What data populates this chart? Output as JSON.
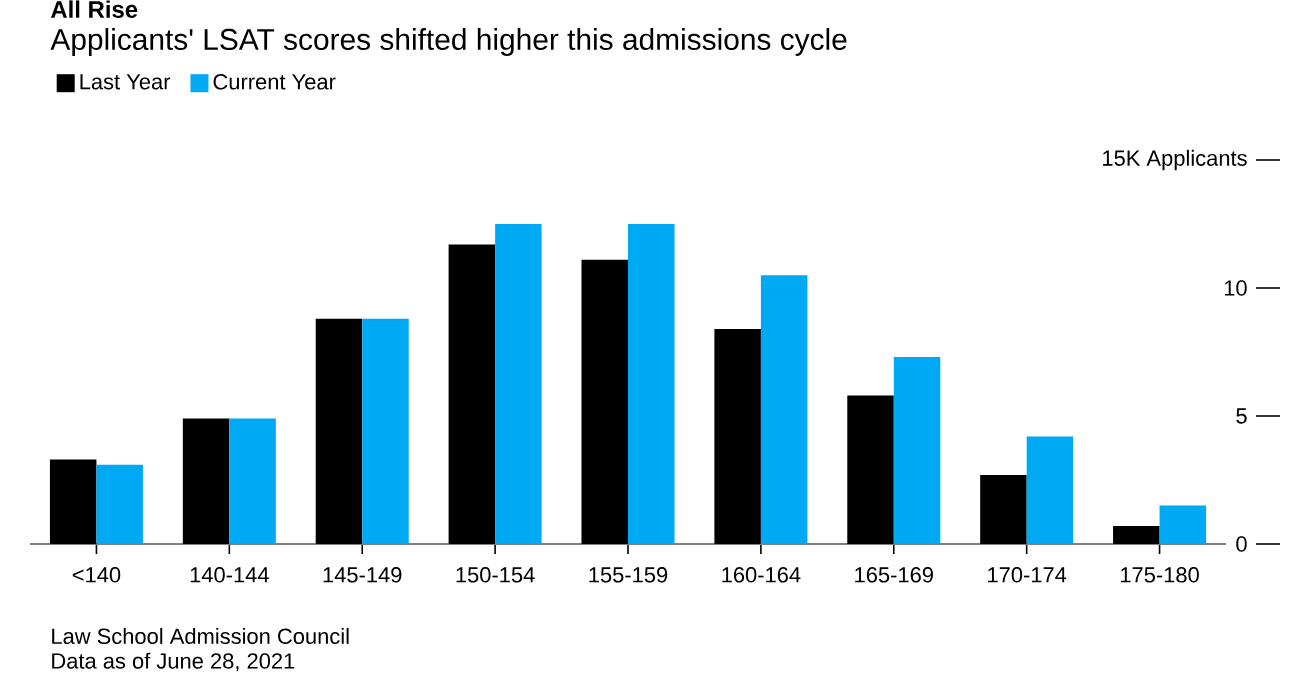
{
  "chart_data": {
    "type": "bar",
    "title": "All Rise",
    "subtitle": "Applicants' LSAT scores shifted higher this admissions cycle",
    "categories": [
      "<140",
      "140-144",
      "145-149",
      "150-154",
      "155-159",
      "160-164",
      "165-169",
      "170-174",
      "175-180"
    ],
    "series": [
      {
        "name": "Last Year",
        "color": "#000000",
        "values": [
          3.3,
          4.9,
          8.8,
          11.7,
          11.1,
          8.4,
          5.8,
          2.7,
          0.7
        ]
      },
      {
        "name": "Current Year",
        "color": "#00a9f4",
        "values": [
          3.1,
          4.9,
          8.8,
          12.5,
          12.5,
          10.5,
          7.3,
          4.2,
          1.5
        ]
      }
    ],
    "ylim": [
      0,
      15
    ],
    "yticks": [
      0,
      5,
      10,
      {
        "value": 15,
        "label": "15K Applicants"
      }
    ],
    "legend": "top left",
    "annotations": [
      "Law School Admission Council",
      "Data as of June 28, 2021"
    ]
  }
}
